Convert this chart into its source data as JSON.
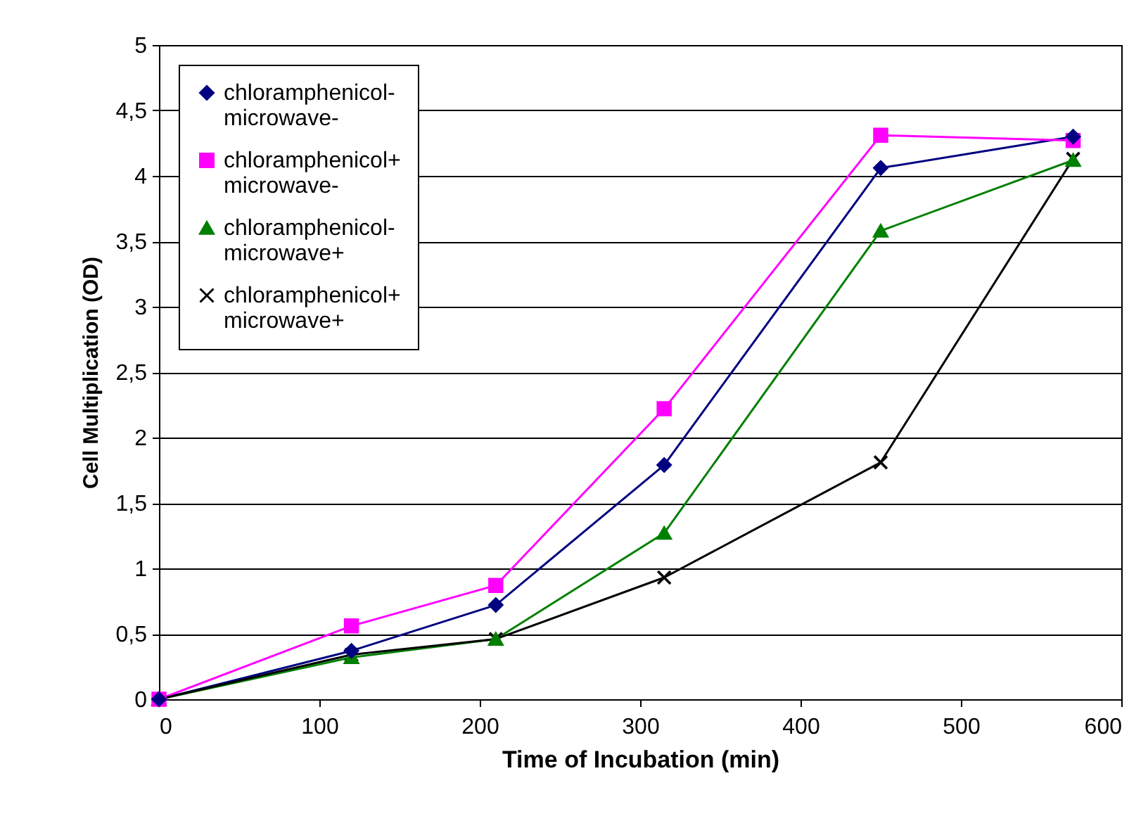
{
  "chart_data": {
    "type": "line",
    "xlabel": "Time of Incubation (min)",
    "ylabel": "Cell Multiplication (OD)",
    "x": [
      0,
      120,
      210,
      315,
      450,
      570
    ],
    "series": [
      {
        "name": "chloramphenicol- microwave-",
        "color": "#000080",
        "marker": "diamond",
        "values": [
          0,
          0.37,
          0.72,
          1.79,
          4.06,
          4.3
        ]
      },
      {
        "name": "chloramphenicol+ microwave-",
        "color": "#ff00ff",
        "marker": "square",
        "values": [
          0,
          0.56,
          0.87,
          2.22,
          4.31,
          4.27
        ]
      },
      {
        "name": "chloramphenicol- microwave+",
        "color": "#008000",
        "marker": "triangle",
        "values": [
          0,
          0.32,
          0.46,
          1.27,
          3.58,
          4.12
        ]
      },
      {
        "name": "chloramphenicol+ microwave+",
        "color": "#000000",
        "marker": "cross",
        "values": [
          0,
          0.34,
          0.46,
          0.93,
          1.81,
          4.13
        ]
      }
    ],
    "xlim": [
      0,
      600
    ],
    "xticks": [
      0,
      100,
      200,
      300,
      400,
      500,
      600
    ],
    "ylim": [
      0,
      5
    ],
    "yticks": [
      0,
      {
        "value": 0.5,
        "label": "0,5"
      },
      1,
      {
        "value": 1.5,
        "label": "1,5"
      },
      2,
      {
        "value": 2.5,
        "label": "2,5"
      },
      3,
      {
        "value": 3.5,
        "label": "3,5"
      },
      4,
      {
        "value": 4.5,
        "label": "4,5"
      },
      5
    ],
    "grid": "y",
    "legend": "top left",
    "line_style": "solid"
  }
}
